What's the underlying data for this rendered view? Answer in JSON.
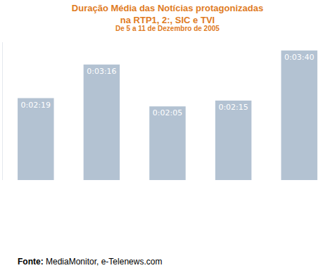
{
  "chart_data": {
    "type": "bar",
    "title": "Duração Média das Notícias protagonizadas\nna RTP1, 2:, SIC e TVI",
    "subtitle": "De 5 a 11 de Dezembro de 2005",
    "categories": [
      null,
      null,
      null,
      null,
      null
    ],
    "values": [
      139,
      196,
      125,
      135,
      220
    ],
    "value_labels": [
      "0:02:19",
      "0:03:16",
      "0:02:05",
      "0:02:15",
      "0:03:40"
    ],
    "data_labels": true,
    "color": "#b3c2d2",
    "ylim": [
      0,
      234
    ],
    "tick_labels": false,
    "grid": false,
    "annotations": [
      "Fonte: MediaMonitor, e-Telenews.com"
    ]
  }
}
